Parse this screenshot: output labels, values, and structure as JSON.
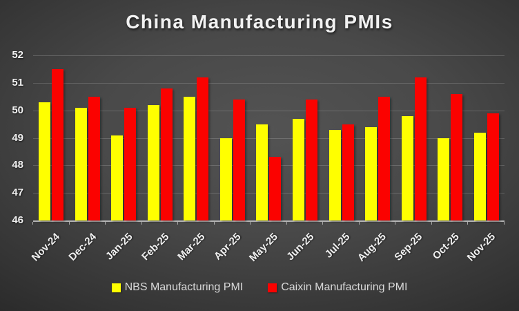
{
  "title": "China Manufacturing PMIs",
  "chart_data": {
    "type": "bar",
    "title": "China Manufacturing PMIs",
    "xlabel": "",
    "ylabel": "",
    "categories": [
      "Nov-24",
      "Dec-24",
      "Jan-25",
      "Feb-25",
      "Mar-25",
      "Apr-25",
      "May-25",
      "Jun-25",
      "Jul-25",
      "Aug-25",
      "Sep-25",
      "Oct-25",
      "Nov-25"
    ],
    "series": [
      {
        "name": "NBS Manufacturing PMI",
        "color": "#ffff00",
        "values": [
          50.3,
          50.1,
          49.1,
          50.2,
          50.5,
          49.0,
          49.5,
          49.7,
          49.3,
          49.4,
          49.8,
          49.0,
          49.2
        ]
      },
      {
        "name": "Caixin Manufacturing PMI",
        "color": "#fb0200",
        "values": [
          51.5,
          50.5,
          50.1,
          50.8,
          51.2,
          50.4,
          48.3,
          50.4,
          49.5,
          50.5,
          51.2,
          50.6,
          49.9
        ]
      }
    ],
    "ylim": [
      46,
      52
    ],
    "yticks": [
      46,
      47,
      48,
      49,
      50,
      51,
      52
    ],
    "grid": true,
    "legend_position": "bottom"
  },
  "colors": {
    "background_center": "#535353",
    "background_edge": "#242424",
    "title_text": "#f2f2f2",
    "axis_text": "#f0f0f0",
    "legend_text": "#d9d9d9",
    "gridline": "rgba(255,255,255,0.17)",
    "axis_line": "#b5b5b5",
    "nbs_bar": "#ffff00",
    "caixin_bar": "#fb0200"
  }
}
